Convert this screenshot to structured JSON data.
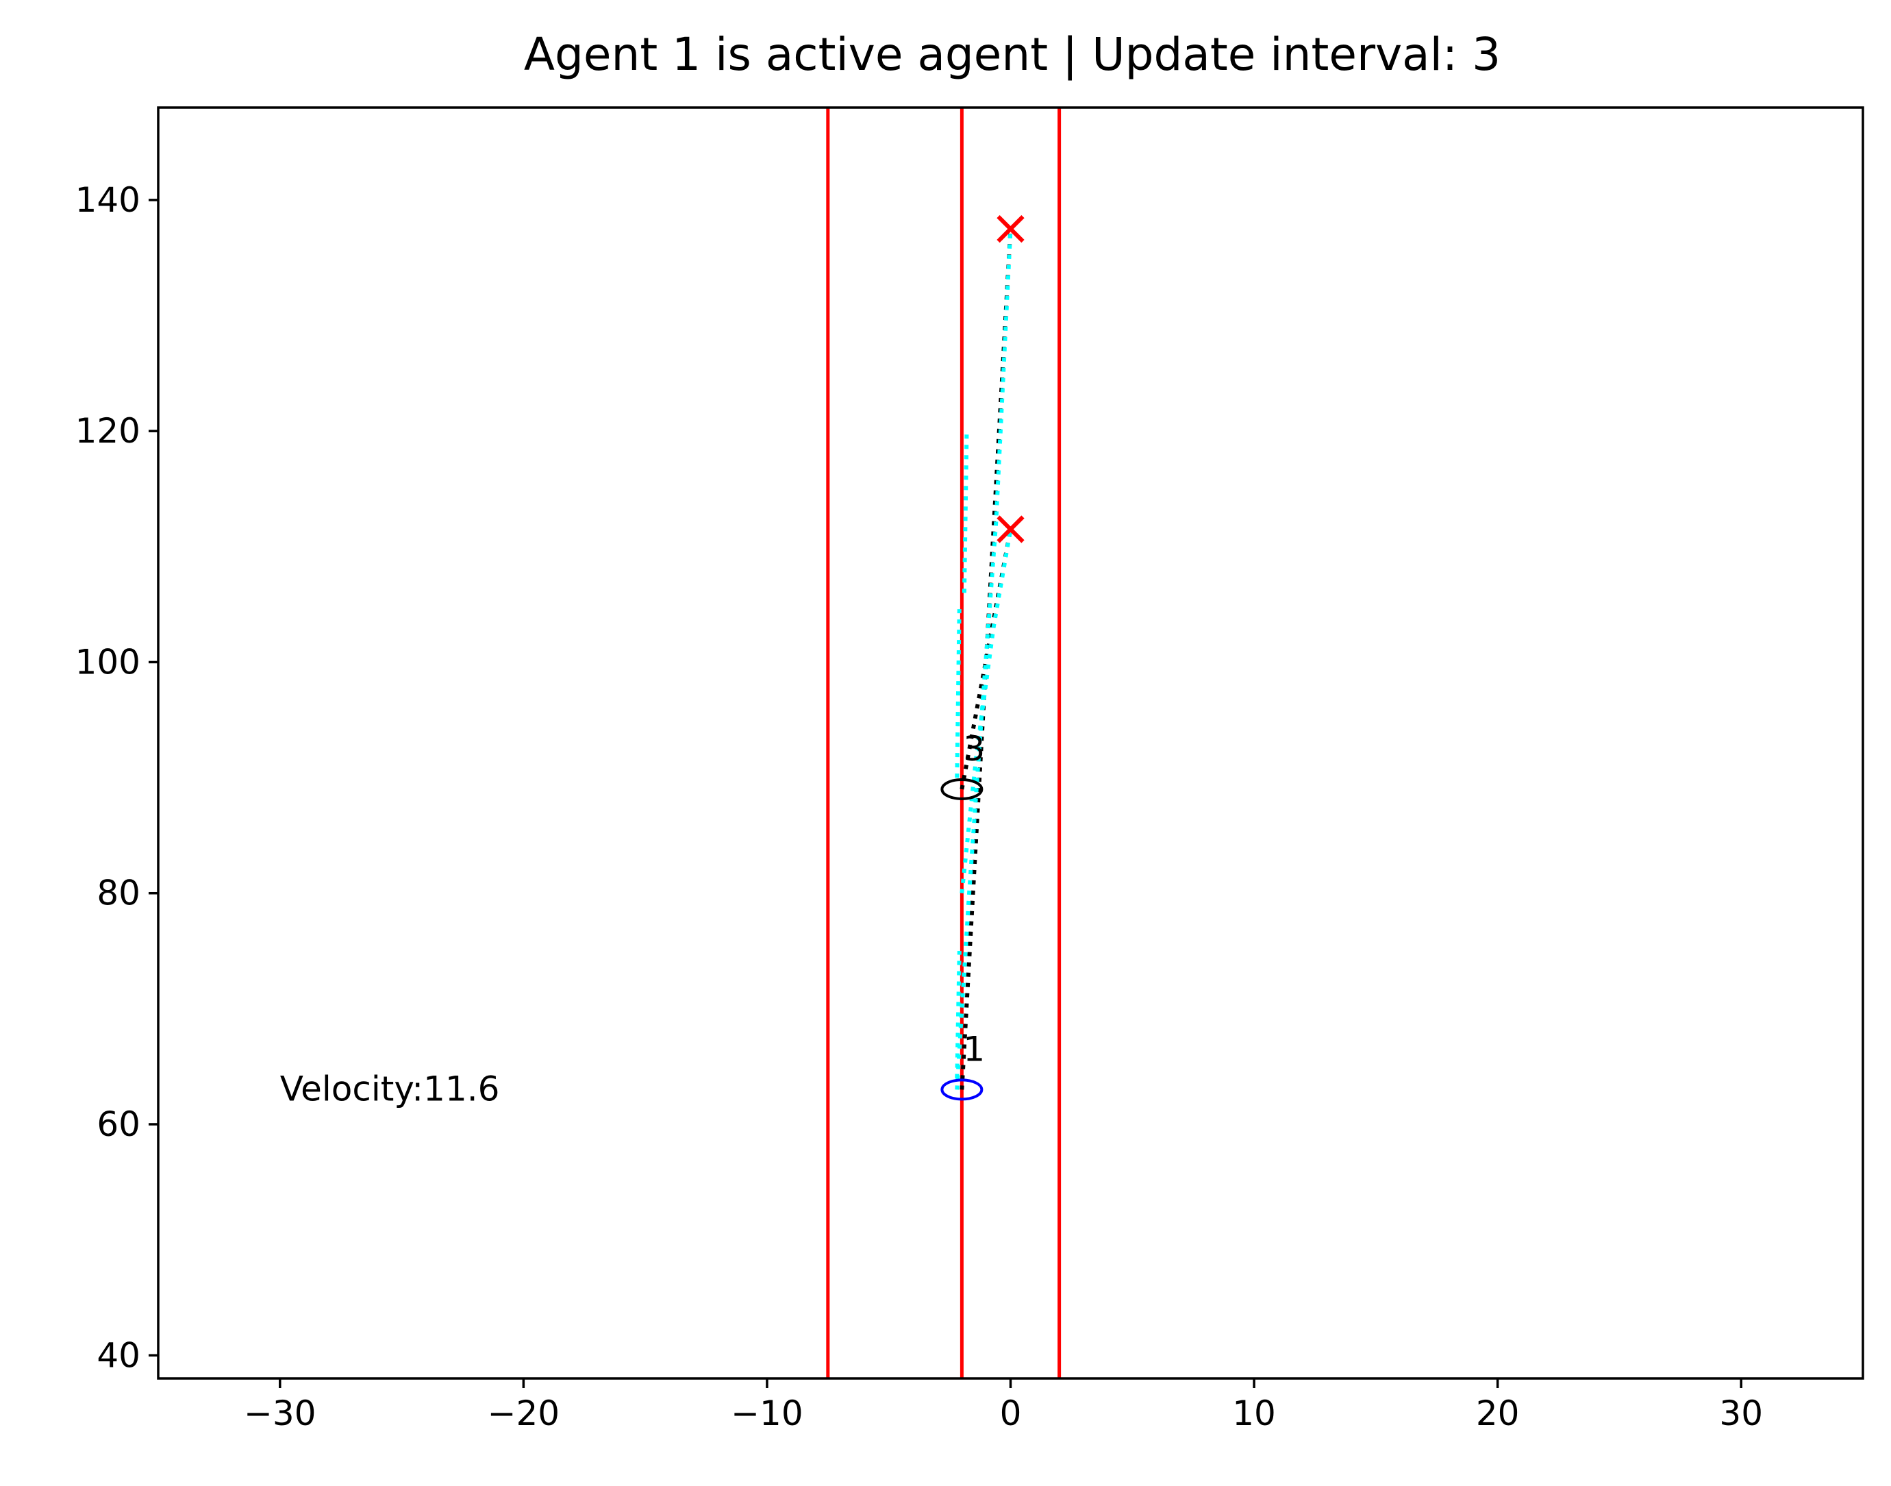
{
  "chart_data": {
    "type": "scatter",
    "title": "Agent 1 is active agent | Update interval: 3",
    "xlabel": "",
    "ylabel": "",
    "xlim": [
      -35,
      35
    ],
    "ylim": [
      38,
      148
    ],
    "grid": false,
    "x_ticks": [
      -30,
      -20,
      -10,
      0,
      10,
      20,
      30
    ],
    "x_tick_labels": [
      "−30",
      "−20",
      "−10",
      "0",
      "10",
      "20",
      "30"
    ],
    "y_ticks": [
      40,
      60,
      80,
      100,
      120,
      140
    ],
    "y_tick_labels": [
      "40",
      "60",
      "80",
      "100",
      "120",
      "140"
    ],
    "lane_lines": [
      {
        "x": -7.5,
        "color": "#ff0000"
      },
      {
        "x": -2,
        "color": "#ff0000"
      },
      {
        "x": 2,
        "color": "#ff0000"
      }
    ],
    "agents": [
      {
        "label": "1",
        "x": -2,
        "y": 63,
        "color": "#0000ff"
      },
      {
        "label": "3",
        "x": -2,
        "y": 89,
        "color": "#000000"
      }
    ],
    "goals": [
      {
        "x": 0,
        "y": 137.5,
        "color": "#ff0000"
      },
      {
        "x": 0,
        "y": 111.5,
        "color": "#ff0000"
      }
    ],
    "paths": [
      {
        "color": "#000000",
        "style": "dotted",
        "points": [
          [
            -2,
            63
          ],
          [
            0,
            137.5
          ]
        ]
      },
      {
        "color": "#000000",
        "style": "dotted",
        "points": [
          [
            -2,
            89
          ],
          [
            0,
            111.5
          ]
        ]
      },
      {
        "color": "#00ffff",
        "style": "dotted",
        "points": [
          [
            -2.2,
            63
          ],
          [
            -2.0,
            70
          ],
          [
            -1.7,
            80
          ],
          [
            -1.2,
            95
          ],
          [
            -0.6,
            112
          ],
          [
            0,
            137.5
          ]
        ]
      },
      {
        "color": "#00ffff",
        "style": "dotted",
        "points": [
          [
            -2.0,
            80
          ],
          [
            -1.4,
            92
          ],
          [
            -0.7,
            103
          ],
          [
            0,
            111.5
          ]
        ]
      },
      {
        "color": "#00ffff",
        "style": "dotted",
        "points": [
          [
            -2.2,
            64
          ],
          [
            -2.1,
            75
          ]
        ]
      },
      {
        "color": "#00ffff",
        "style": "dotted",
        "points": [
          [
            -2.2,
            90
          ],
          [
            -2.1,
            105
          ]
        ]
      },
      {
        "color": "#00ffff",
        "style": "dotted",
        "points": [
          [
            -1.9,
            106
          ],
          [
            -1.8,
            120
          ]
        ]
      }
    ],
    "annotations": [
      {
        "text": "Velocity:11.6",
        "x": -30,
        "y": 63
      }
    ]
  }
}
